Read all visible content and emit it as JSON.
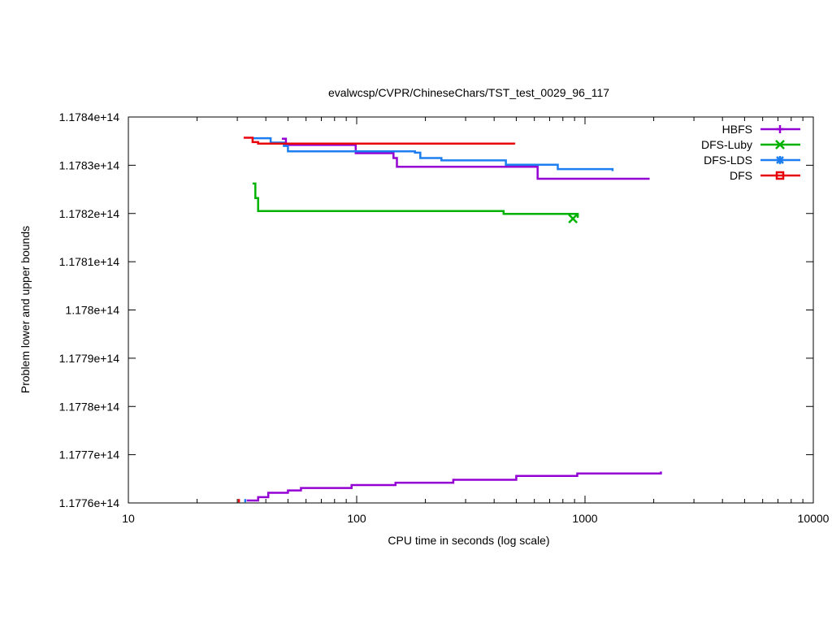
{
  "chart_data": {
    "type": "line",
    "title": "evalwcsp/CVPR/ChineseChars/TST_test_0029_96_117",
    "xlabel": "CPU time in seconds (log scale)",
    "ylabel": "Problem lower and upper bounds",
    "xscale": "log",
    "xlim": [
      10,
      10000
    ],
    "ylim": [
      117760000000000.0,
      117840000000000.0
    ],
    "x_ticks": [
      10,
      100,
      1000,
      10000
    ],
    "x_tick_labels": [
      "10",
      "100",
      "1000",
      "10000"
    ],
    "y_ticks": [
      117760000000000.0,
      117770000000000.0,
      117780000000000.0,
      117790000000000.0,
      117800000000000.0,
      117810000000000.0,
      117820000000000.0,
      117830000000000.0,
      117840000000000.0
    ],
    "y_tick_labels": [
      "1.1776e+14",
      "1.1777e+14",
      "1.1778e+14",
      "1.1779e+14",
      "1.178e+14",
      "1.1781e+14",
      "1.1782e+14",
      "1.1783e+14",
      "1.1784e+14"
    ],
    "grid": false,
    "legend_position": "top-right",
    "series": [
      {
        "name": "HBFS",
        "color": "#9400d3",
        "marker": "plus",
        "kind": "upper",
        "points": [
          [
            47,
            117835500000000.0
          ],
          [
            49,
            117834200000000.0
          ],
          [
            99,
            117832500000000.0
          ],
          [
            145,
            117831500000000.0
          ],
          [
            150,
            117829700000000.0
          ],
          [
            620,
            117827200000000.0
          ],
          [
            1900,
            117827000000000.0
          ]
        ]
      },
      {
        "name": "HBFS",
        "color": "#9400d3",
        "marker": "plus",
        "kind": "lower",
        "points": [
          [
            33,
            117760500000000.0
          ],
          [
            37,
            117761200000000.0
          ],
          [
            41,
            117762100000000.0
          ],
          [
            50,
            117762600000000.0
          ],
          [
            57,
            117763100000000.0
          ],
          [
            95,
            117763700000000.0
          ],
          [
            148,
            117764200000000.0
          ],
          [
            265,
            117764800000000.0
          ],
          [
            500,
            117765600000000.0
          ],
          [
            925,
            117766100000000.0
          ],
          [
            2150,
            117766500000000.0
          ]
        ]
      },
      {
        "name": "DFS-Luby",
        "color": "#00b200",
        "marker": "x",
        "kind": "upper",
        "points": [
          [
            35,
            117826200000000.0
          ],
          [
            36,
            117823200000000.0
          ],
          [
            37,
            117820500000000.0
          ],
          [
            440,
            117819900000000.0
          ],
          [
            930,
            117819100000000.0
          ]
        ]
      },
      {
        "name": "DFS-LDS",
        "color": "#1c7ef0",
        "marker": "star",
        "kind": "upper",
        "points": [
          [
            35,
            117835600000000.0
          ],
          [
            42,
            117834700000000.0
          ],
          [
            48,
            117834000000000.0
          ],
          [
            50,
            117832900000000.0
          ],
          [
            180,
            117832600000000.0
          ],
          [
            190,
            117831500000000.0
          ],
          [
            235,
            117831000000000.0
          ],
          [
            450,
            117830100000000.0
          ],
          [
            760,
            117829200000000.0
          ],
          [
            1320,
            117828800000000.0
          ]
        ]
      },
      {
        "name": "DFS",
        "color": "#e8000b",
        "marker": "square",
        "kind": "upper",
        "points": [
          [
            32,
            117835700000000.0
          ],
          [
            35,
            117834800000000.0
          ],
          [
            37,
            117834500000000.0
          ],
          [
            490,
            117834300000000.0
          ]
        ]
      }
    ],
    "lower_start_marks": [
      {
        "x": 30.5,
        "y": 117760300000000.0,
        "color": "#e8000b"
      },
      {
        "x": 32.5,
        "y": 117760300000000.0,
        "color": "#1c7ef0"
      }
    ]
  }
}
